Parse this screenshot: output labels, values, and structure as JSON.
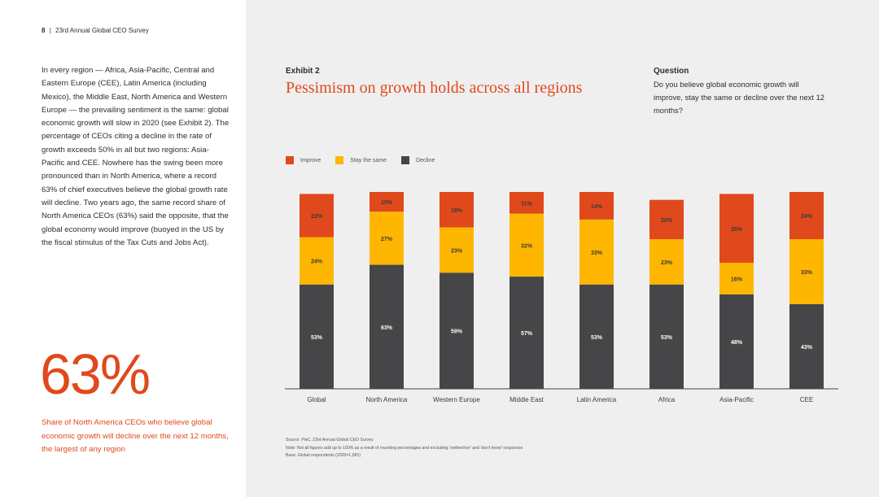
{
  "header": {
    "page_number": "8",
    "separator": "|",
    "title": "23rd Annual Global CEO Survey"
  },
  "body_text": "In every region — Africa, Asia-Pacific, Central and Eastern Europe (CEE), Latin America (including Mexico), the Middle East, North America and Western Europe — the prevailing sentiment is the same: global economic growth will slow in 2020 (see Exhibit 2). The percentage of CEOs citing a decline in the rate of growth exceeds 50% in all but two regions: Asia-Pacific and CEE. Nowhere has the swing been more pronounced than in North America, where a record 63% of chief executives believe the global growth rate will decline. Two years ago, the same record share of North America CEOs (63%) said the opposite, that the global economy would improve (buoyed in the US by the fiscal stimulus of the Tax Cuts and Jobs Act).",
  "highlight": {
    "value": "63%",
    "caption": "Share of North America CEOs who believe global economic growth will decline over the next 12 months, the largest of any region"
  },
  "exhibit": {
    "label": "Exhibit 2",
    "title": "Pessimism on growth holds across all regions"
  },
  "question": {
    "label": "Question",
    "text": "Do you believe global economic growth will improve, stay the same or decline over the next 12 months?"
  },
  "legend": [
    {
      "label": "Improve",
      "color": "#e0491b"
    },
    {
      "label": "Stay the same",
      "color": "#ffb600"
    },
    {
      "label": "Decline",
      "color": "#464547"
    }
  ],
  "chart_data": {
    "type": "bar",
    "stacked": true,
    "categories": [
      "Global",
      "North America",
      "Western Europe",
      "Middle East",
      "Latin America",
      "Africa",
      "Asia-Pacific",
      "CEE"
    ],
    "series": [
      {
        "name": "Decline",
        "color": "#464547",
        "values": [
          53,
          63,
          59,
          57,
          53,
          53,
          48,
          43
        ]
      },
      {
        "name": "Stay the same",
        "color": "#ffb600",
        "values": [
          24,
          27,
          23,
          32,
          33,
          23,
          16,
          33
        ]
      },
      {
        "name": "Improve",
        "color": "#e0491b",
        "values": [
          22,
          10,
          18,
          11,
          14,
          20,
          35,
          24
        ]
      }
    ],
    "value_suffix": "%",
    "ylim": [
      0,
      100
    ],
    "legend_position": "top-left"
  },
  "footnotes": {
    "source": "Source: PwC, 23rd Annual Global CEO Survey",
    "note": "Note: Not all figures add up to 100% as a result of rounding percentages and excluding 'neither/nor' and 'don't know' responses",
    "base": "Base: Global respondents (2020=1,581)"
  }
}
